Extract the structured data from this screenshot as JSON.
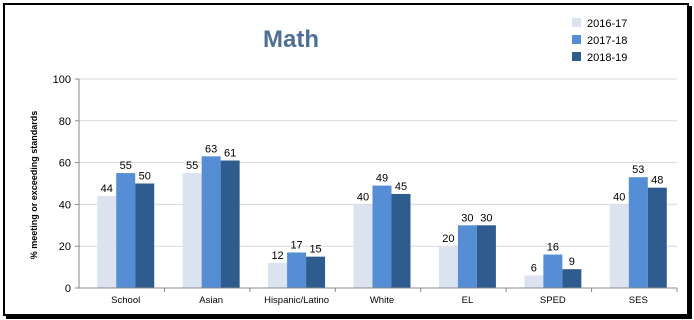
{
  "chart_data": {
    "type": "bar",
    "title": "Math",
    "ylabel": "% meeting or exceeding standards",
    "xlabel": "",
    "ylim": [
      0,
      100
    ],
    "yticks": [
      0,
      20,
      40,
      60,
      80,
      100
    ],
    "categories": [
      "School",
      "Asian",
      "Hispanic/Latino",
      "White",
      "EL",
      "SPED",
      "SES"
    ],
    "series": [
      {
        "name": "2016-17",
        "color": "#dce3f0",
        "values": [
          44,
          55,
          12,
          40,
          20,
          6,
          40
        ]
      },
      {
        "name": "2017-18",
        "color": "#558ed5",
        "values": [
          55,
          63,
          17,
          49,
          30,
          16,
          53
        ]
      },
      {
        "name": "2018-19",
        "color": "#2f5c8f",
        "values": [
          50,
          61,
          15,
          45,
          30,
          9,
          48
        ]
      }
    ],
    "legend_position": "top-right",
    "grid": "horizontal"
  }
}
